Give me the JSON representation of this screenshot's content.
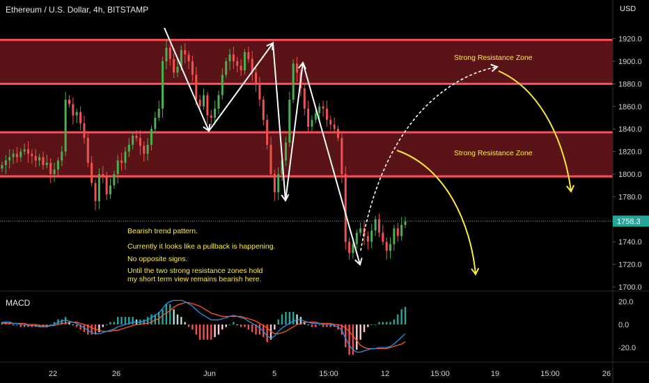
{
  "header": {
    "title": "Ethereum / U.S. Dollar, 4h, BITSTAMP",
    "currency": "USD"
  },
  "annotations": {
    "notes": [
      "Bearish trend pattern.",
      "Currently it looks like a pullback is happening.",
      "No opposite signs.",
      "Until the two strong resistance zones hold",
      "my short term view remains bearish here."
    ],
    "zone_upper_label": "Strong Resistance Zone",
    "zone_lower_label": "Strong Resistance Zone"
  },
  "colors": {
    "background": "#000000",
    "up": "#26a69a",
    "up_candle": "#4caf50",
    "down": "#ef5350",
    "zone_fill": "#5a1418",
    "zone_line": "#ff4f5a",
    "annotation": "#ffeb3b",
    "drawing_white": "#ffffff",
    "macd_line": "#2196f3",
    "signal_line": "#ff5722",
    "last_price_bg": "#26a69a"
  },
  "chart_data": [
    {
      "type": "candlestick",
      "title": "Ethereum / U.S. Dollar, 4h, BITSTAMP",
      "ylabel": "USD",
      "ylim": [
        1695,
        1935
      ],
      "yticks": [
        1700.0,
        1720.0,
        1740.0,
        1760.0,
        1780.0,
        1800.0,
        1820.0,
        1840.0,
        1860.0,
        1880.0,
        1900.0,
        1920.0
      ],
      "xticks": [
        "22",
        "26",
        "Jun",
        "5",
        "15:00",
        "12",
        "15:00",
        "19",
        "15:00",
        "26"
      ],
      "last_price": 1758.3,
      "resistance_zones": [
        {
          "name": "Strong Resistance Zone",
          "low": 1880,
          "high": 1919
        },
        {
          "name": "Strong Resistance Zone",
          "low": 1798,
          "high": 1837
        }
      ],
      "closes": [
        1808,
        1812,
        1815,
        1818,
        1815,
        1820,
        1822,
        1818,
        1816,
        1812,
        1815,
        1808,
        1810,
        1800,
        1804,
        1812,
        1820,
        1866,
        1862,
        1852,
        1855,
        1845,
        1832,
        1810,
        1792,
        1776,
        1800,
        1798,
        1782,
        1790,
        1800,
        1812,
        1810,
        1820,
        1826,
        1834,
        1832,
        1825,
        1818,
        1826,
        1840,
        1850,
        1858,
        1900,
        1912,
        1902,
        1890,
        1895,
        1910,
        1906,
        1900,
        1888,
        1866,
        1860,
        1870,
        1852,
        1850,
        1858,
        1870,
        1888,
        1900,
        1906,
        1900,
        1896,
        1892,
        1908,
        1902,
        1890,
        1880,
        1866,
        1848,
        1826,
        1800,
        1784,
        1800,
        1812,
        1828,
        1866,
        1898,
        1890,
        1876,
        1858,
        1842,
        1848,
        1854,
        1860,
        1858,
        1848,
        1844,
        1840,
        1832,
        1800,
        1740,
        1730,
        1738,
        1748,
        1752,
        1745,
        1740,
        1750,
        1760,
        1748,
        1740,
        1732,
        1738,
        1752,
        1745,
        1755,
        1758.3
      ],
      "macd": {
        "ylim": [
          -30,
          27
        ],
        "yticks": [
          20.0,
          0.0,
          -20.0
        ],
        "macd_values": [
          2,
          2,
          2,
          1,
          1,
          0,
          0,
          -1,
          -1,
          -1,
          -2,
          -2,
          -2,
          -1,
          0,
          2,
          3,
          4,
          3,
          2,
          1,
          -1,
          -3,
          -5,
          -7,
          -8,
          -8,
          -7,
          -6,
          -5,
          -4,
          -2,
          -1,
          0,
          1,
          2,
          2,
          2,
          3,
          4,
          6,
          8,
          10,
          14,
          18,
          20,
          21,
          21,
          21,
          20,
          18,
          16,
          13,
          10,
          8,
          6,
          4,
          4,
          4,
          5,
          6,
          7,
          8,
          7,
          6,
          5,
          3,
          1,
          -1,
          -3,
          -6,
          -10,
          -12,
          -10,
          -6,
          -3,
          -1,
          1,
          3,
          4,
          4,
          3,
          2,
          1,
          1,
          1,
          0,
          0,
          0,
          -1,
          -2,
          -5,
          -12,
          -18,
          -22,
          -24,
          -24,
          -23,
          -22,
          -21,
          -21,
          -20,
          -20,
          -20,
          -19,
          -17,
          -14,
          -11,
          -8
        ],
        "signal_values": [
          1,
          1,
          1,
          1,
          1,
          1,
          1,
          0,
          0,
          0,
          -1,
          -1,
          -1,
          -1,
          -1,
          0,
          1,
          1,
          2,
          2,
          2,
          1,
          0,
          -1,
          -3,
          -4,
          -5,
          -6,
          -6,
          -6,
          -5,
          -5,
          -4,
          -3,
          -2,
          -1,
          0,
          0,
          1,
          1,
          2,
          4,
          5,
          8,
          10,
          12,
          15,
          17,
          18,
          19,
          19,
          18,
          17,
          16,
          14,
          12,
          10,
          9,
          8,
          7,
          7,
          7,
          7,
          7,
          7,
          6,
          5,
          4,
          3,
          1,
          -1,
          -3,
          -6,
          -8,
          -8,
          -7,
          -6,
          -4,
          -2,
          0,
          1,
          2,
          2,
          2,
          2,
          1,
          1,
          1,
          1,
          0,
          0,
          -1,
          -3,
          -6,
          -10,
          -14,
          -18,
          -20,
          -21,
          -21,
          -21,
          -21,
          -21,
          -21,
          -20,
          -19,
          -18,
          -17,
          -15
        ],
        "histogram": "macd - signal"
      }
    }
  ]
}
